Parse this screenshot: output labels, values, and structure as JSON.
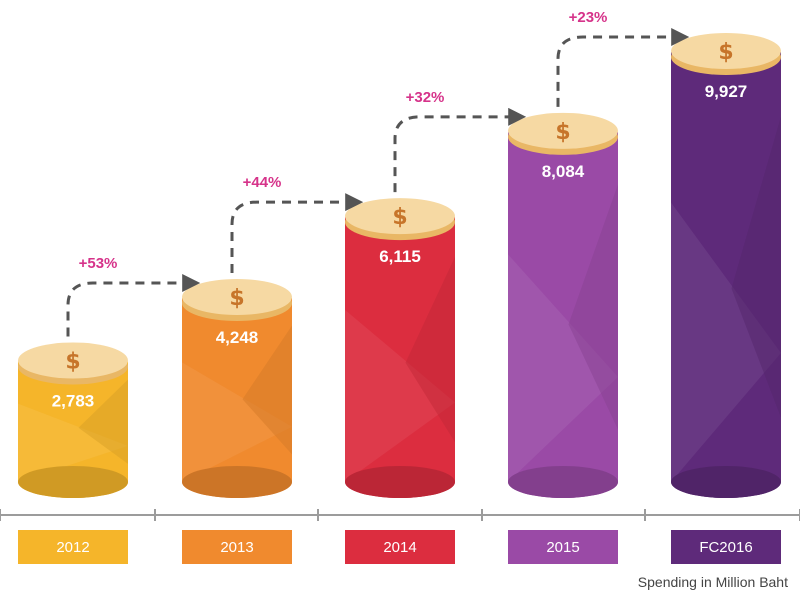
{
  "chart_data": {
    "type": "bar",
    "categories": [
      "2012",
      "2013",
      "2014",
      "2015",
      "FC2016"
    ],
    "values": [
      2783,
      4248,
      6115,
      8084,
      9927
    ],
    "value_labels": [
      "2,783",
      "4,248",
      "6,115",
      "8,084",
      "9,927"
    ],
    "growth_labels": [
      "+53%",
      "+44%",
      "+32%",
      "+23%"
    ],
    "colors": [
      "#f5b52a",
      "#f08a2e",
      "#dc2d3f",
      "#9a4aa6",
      "#5e2a7a"
    ],
    "coin_color": "#f6d9a3",
    "coin_symbol": "$",
    "growth_color": "#d6338a",
    "caption": "Spending in Million Baht",
    "grid": false,
    "legend": "none"
  }
}
